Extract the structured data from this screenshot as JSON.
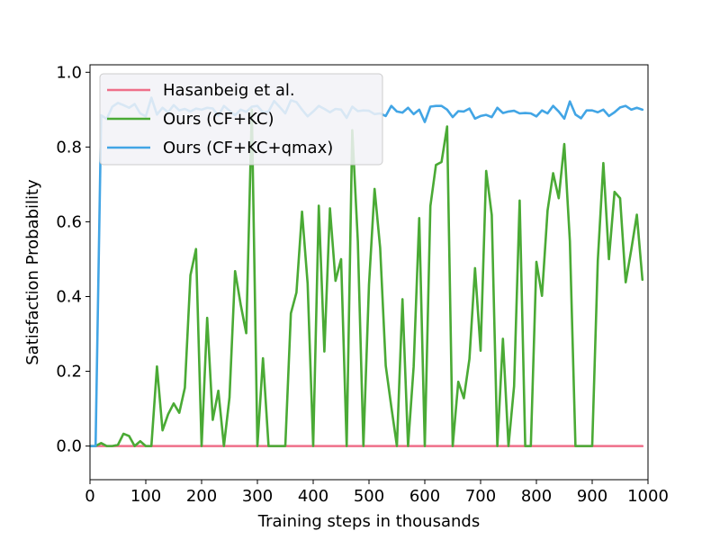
{
  "chart_data": {
    "type": "line",
    "xlabel": "Training steps in thousands",
    "ylabel": "Satisfaction Probability",
    "xlim": [
      0,
      1000
    ],
    "ylim": [
      -0.09,
      1.02
    ],
    "xticks": [
      0,
      100,
      200,
      300,
      400,
      500,
      600,
      700,
      800,
      900,
      1000
    ],
    "yticks": [
      0.0,
      0.2,
      0.4,
      0.6,
      0.8,
      1.0
    ],
    "xtick_labels": [
      "0",
      "100",
      "200",
      "300",
      "400",
      "500",
      "600",
      "700",
      "800",
      "900",
      "1000"
    ],
    "ytick_labels": [
      "0.0",
      "0.2",
      "0.4",
      "0.6",
      "0.8",
      "1.0"
    ],
    "grid": false,
    "legend_position": "top-left",
    "series": [
      {
        "name": "Hasanbeig et al.",
        "color": "#ef6f8a",
        "x": [
          0,
          990
        ],
        "y": [
          0.0,
          0.0
        ]
      },
      {
        "name": "Ours (CF+KC)",
        "color": "#4aaa35",
        "x": [
          0,
          10,
          20,
          30,
          40,
          50,
          60,
          70,
          80,
          90,
          100,
          110,
          120,
          130,
          140,
          150,
          160,
          170,
          180,
          190,
          200,
          210,
          220,
          230,
          240,
          250,
          260,
          270,
          280,
          290,
          300,
          310,
          320,
          330,
          340,
          350,
          360,
          370,
          380,
          390,
          400,
          410,
          420,
          430,
          440,
          450,
          460,
          470,
          480,
          490,
          500,
          510,
          520,
          530,
          540,
          550,
          560,
          570,
          580,
          590,
          600,
          610,
          620,
          630,
          640,
          650,
          660,
          670,
          680,
          690,
          700,
          710,
          720,
          730,
          740,
          750,
          760,
          770,
          780,
          790,
          800,
          810,
          820,
          830,
          840,
          850,
          860,
          870,
          880,
          890,
          900,
          910,
          920,
          930,
          940,
          950,
          960,
          970,
          980,
          990
        ],
        "y": [
          0.0,
          0.0,
          0.008,
          0.0,
          0.0,
          0.003,
          0.033,
          0.027,
          0.0,
          0.013,
          0.0,
          0.0,
          0.213,
          0.042,
          0.085,
          0.114,
          0.089,
          0.156,
          0.457,
          0.527,
          0.0,
          0.343,
          0.07,
          0.148,
          0.0,
          0.13,
          0.468,
          0.379,
          0.302,
          0.9,
          0.0,
          0.235,
          0.0,
          0.0,
          0.0,
          0.0,
          0.355,
          0.411,
          0.627,
          0.435,
          0.0,
          0.643,
          0.253,
          0.636,
          0.442,
          0.5,
          0.0,
          0.845,
          0.548,
          0.0,
          0.432,
          0.688,
          0.53,
          0.215,
          0.105,
          0.0,
          0.393,
          0.0,
          0.212,
          0.61,
          0.0,
          0.642,
          0.752,
          0.76,
          0.855,
          0.0,
          0.172,
          0.128,
          0.233,
          0.476,
          0.255,
          0.736,
          0.618,
          0.0,
          0.287,
          0.0,
          0.16,
          0.657,
          0.0,
          0.0,
          0.493,
          0.402,
          0.63,
          0.73,
          0.663,
          0.808,
          0.548,
          0.0,
          0.0,
          0.0,
          0.0,
          0.495,
          0.757,
          0.5,
          0.68,
          0.663,
          0.438,
          0.525,
          0.619,
          0.445
        ]
      },
      {
        "name": "Ours (CF+KC+qmax)",
        "color": "#42a5e5",
        "x": [
          0,
          10,
          20,
          30,
          40,
          50,
          60,
          70,
          80,
          90,
          100,
          110,
          120,
          130,
          140,
          150,
          160,
          170,
          180,
          190,
          200,
          210,
          220,
          230,
          240,
          250,
          260,
          270,
          280,
          290,
          300,
          310,
          320,
          330,
          340,
          350,
          360,
          370,
          380,
          390,
          400,
          410,
          420,
          430,
          440,
          450,
          460,
          470,
          480,
          490,
          500,
          510,
          520,
          530,
          540,
          550,
          560,
          570,
          580,
          590,
          600,
          610,
          620,
          630,
          640,
          650,
          660,
          670,
          680,
          690,
          700,
          710,
          720,
          730,
          740,
          750,
          760,
          770,
          780,
          790,
          800,
          810,
          820,
          830,
          840,
          850,
          860,
          870,
          880,
          890,
          900,
          910,
          920,
          930,
          940,
          950,
          960,
          970,
          980,
          990
        ],
        "y": [
          0.0,
          0.0,
          0.885,
          0.875,
          0.908,
          0.918,
          0.912,
          0.905,
          0.915,
          0.89,
          0.882,
          0.932,
          0.887,
          0.905,
          0.893,
          0.912,
          0.898,
          0.902,
          0.895,
          0.903,
          0.9,
          0.905,
          0.903,
          0.884,
          0.91,
          0.897,
          0.885,
          0.9,
          0.894,
          0.908,
          0.91,
          0.893,
          0.895,
          0.923,
          0.907,
          0.89,
          0.925,
          0.92,
          0.9,
          0.882,
          0.895,
          0.91,
          0.902,
          0.893,
          0.902,
          0.9,
          0.878,
          0.908,
          0.896,
          0.898,
          0.897,
          0.888,
          0.89,
          0.883,
          0.91,
          0.895,
          0.892,
          0.905,
          0.888,
          0.9,
          0.867,
          0.908,
          0.91,
          0.91,
          0.9,
          0.88,
          0.896,
          0.895,
          0.903,
          0.876,
          0.883,
          0.886,
          0.88,
          0.905,
          0.891,
          0.895,
          0.897,
          0.89,
          0.891,
          0.89,
          0.882,
          0.898,
          0.89,
          0.91,
          0.895,
          0.876,
          0.922,
          0.887,
          0.877,
          0.898,
          0.898,
          0.893,
          0.9,
          0.883,
          0.893,
          0.906,
          0.91,
          0.9,
          0.905,
          0.9
        ]
      }
    ]
  }
}
